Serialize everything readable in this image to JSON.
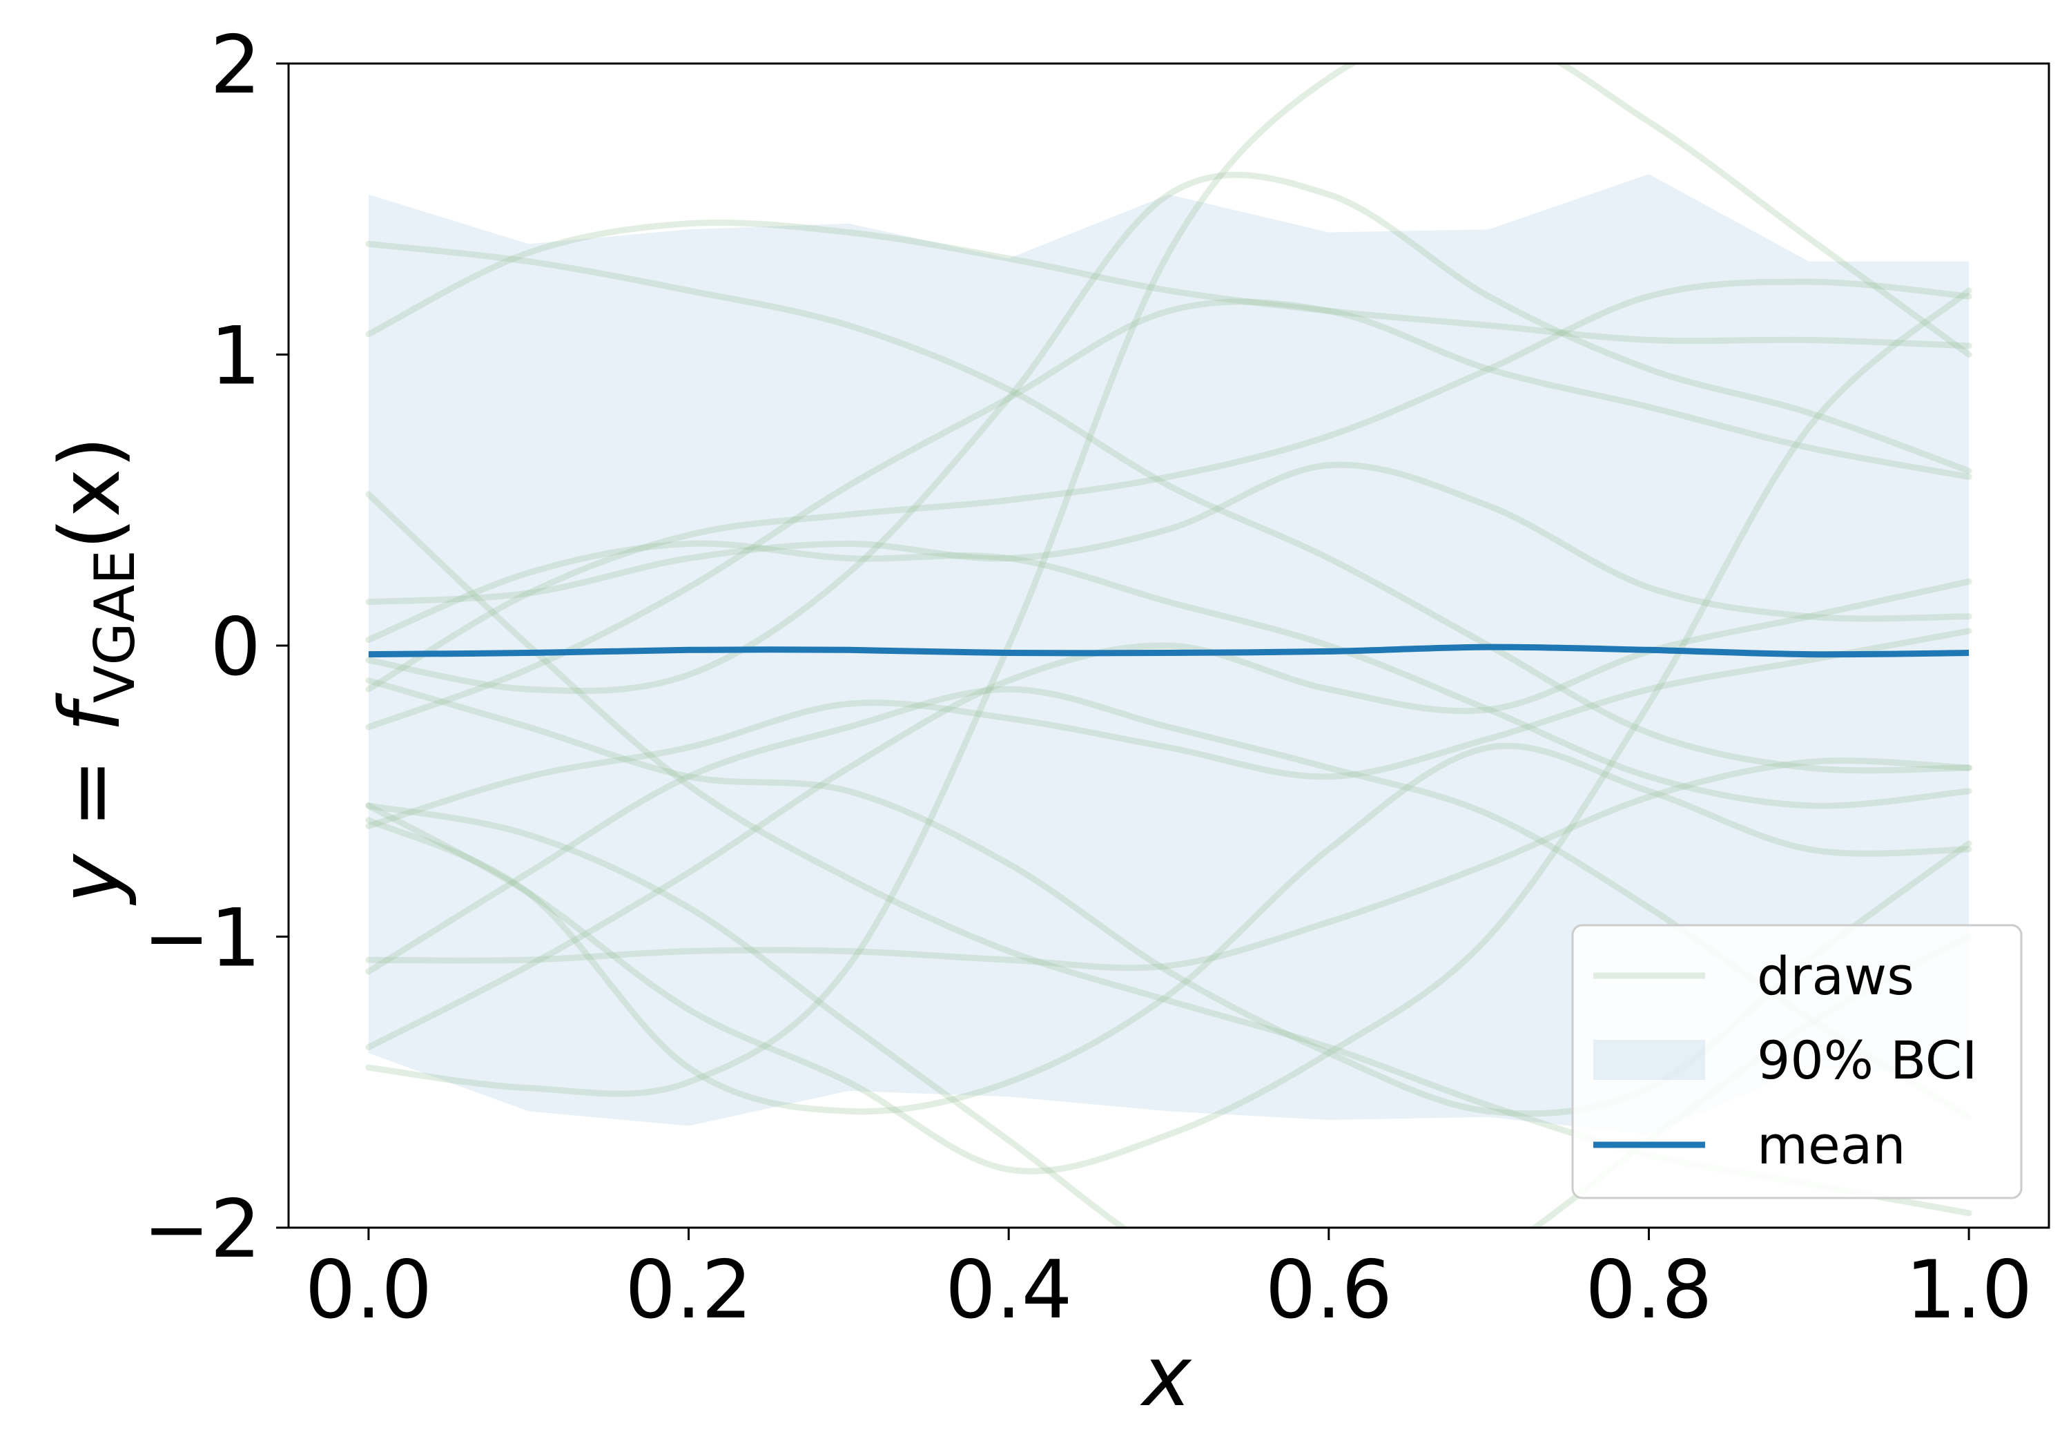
{
  "chart_data": {
    "type": "line",
    "title": "",
    "xlabel": "x",
    "ylabel": {
      "prefix": "y = ",
      "func": "f",
      "subscript": "VGAE",
      "suffix": "(x)"
    },
    "xlim": [
      -0.05,
      1.05
    ],
    "ylim": [
      -2,
      2
    ],
    "xticks": [
      0.0,
      0.2,
      0.4,
      0.6,
      0.8,
      1.0
    ],
    "xtick_labels": [
      "0.0",
      "0.2",
      "0.4",
      "0.6",
      "0.8",
      "1.0"
    ],
    "yticks": [
      -2,
      -1,
      0,
      1,
      2
    ],
    "ytick_labels": [
      "−2",
      "−1",
      "0",
      "1",
      "2"
    ],
    "grid": false,
    "legend_position": "lower-right",
    "legend": [
      {
        "label": "draws",
        "kind": "line",
        "color": "#8fbc8f",
        "opacity": 0.25
      },
      {
        "label": "90% BCI",
        "kind": "fill",
        "color": "#1f77b4",
        "opacity": 0.1
      },
      {
        "label": "mean",
        "kind": "line",
        "color": "#1f77b4",
        "opacity": 1.0
      }
    ],
    "x": [
      0.0,
      0.1,
      0.2,
      0.3,
      0.4,
      0.5,
      0.6,
      0.7,
      0.8,
      0.9,
      1.0
    ],
    "bci": {
      "color": "#1f77b4",
      "opacity": 0.1,
      "upper": [
        1.55,
        1.38,
        1.43,
        1.45,
        1.33,
        1.55,
        1.42,
        1.43,
        1.62,
        1.32,
        1.32
      ],
      "lower": [
        -1.4,
        -1.6,
        -1.65,
        -1.53,
        -1.55,
        -1.6,
        -1.63,
        -1.62,
        -1.68,
        -1.45,
        -1.48
      ]
    },
    "mean": {
      "color": "#1f77b4",
      "values": [
        -0.03,
        -0.025,
        -0.015,
        -0.015,
        -0.025,
        -0.025,
        -0.02,
        -0.005,
        -0.015,
        -0.03,
        -0.025
      ]
    },
    "draws": {
      "color": "#8fbc8f",
      "opacity": 0.25,
      "series": [
        [
          1.38,
          1.32,
          1.22,
          1.1,
          0.88,
          0.55,
          0.3,
          0.0,
          -0.3,
          -0.42,
          -0.42
        ],
        [
          1.07,
          1.35,
          1.45,
          1.42,
          1.33,
          1.22,
          1.15,
          1.1,
          1.05,
          1.05,
          1.03
        ],
        [
          0.52,
          0.0,
          -0.48,
          -0.8,
          -1.05,
          -1.22,
          -1.38,
          -1.58,
          -1.75,
          -1.85,
          -1.95
        ],
        [
          -1.45,
          -1.52,
          -1.5,
          -1.1,
          0.0,
          1.35,
          1.95,
          2.1,
          1.8,
          1.4,
          1.0
        ],
        [
          -0.55,
          -0.65,
          -0.9,
          -1.3,
          -1.7,
          -2.1,
          -2.3,
          -2.1,
          -1.7,
          -1.3,
          -1.0
        ],
        [
          -0.05,
          -0.15,
          -0.1,
          0.25,
          0.85,
          1.55,
          1.55,
          1.2,
          0.95,
          0.8,
          0.6
        ],
        [
          0.15,
          0.18,
          0.3,
          0.35,
          0.3,
          0.4,
          0.62,
          0.48,
          0.2,
          0.1,
          0.1
        ],
        [
          -0.15,
          0.18,
          0.38,
          0.45,
          0.5,
          0.58,
          0.72,
          0.95,
          1.2,
          1.25,
          1.2
        ],
        [
          -0.28,
          -0.08,
          0.2,
          0.55,
          0.85,
          1.15,
          1.15,
          0.95,
          0.82,
          0.68,
          0.58
        ],
        [
          -0.62,
          -0.45,
          -0.35,
          -0.2,
          -0.25,
          -0.35,
          -0.45,
          -0.32,
          -0.15,
          -0.05,
          0.05
        ],
        [
          -1.08,
          -1.08,
          -1.05,
          -1.05,
          -1.08,
          -1.1,
          -0.95,
          -0.75,
          -0.52,
          -0.4,
          -0.42
        ],
        [
          -1.38,
          -1.1,
          -0.78,
          -0.42,
          -0.12,
          0.0,
          -0.15,
          -0.22,
          -0.02,
          0.1,
          0.22
        ],
        [
          -0.55,
          -0.85,
          -1.25,
          -1.5,
          -1.8,
          -1.68,
          -1.4,
          -1.0,
          -0.2,
          0.75,
          1.22
        ],
        [
          -1.12,
          -0.78,
          -0.45,
          -0.28,
          -0.15,
          -0.28,
          -0.42,
          -0.58,
          -0.9,
          -1.28,
          -1.62
        ],
        [
          -0.12,
          -0.28,
          -0.45,
          -0.5,
          -0.75,
          -1.12,
          -1.4,
          -1.6,
          -1.52,
          -1.08,
          -0.68
        ],
        [
          0.02,
          0.25,
          0.35,
          0.3,
          0.3,
          0.15,
          0.0,
          -0.22,
          -0.45,
          -0.55,
          -0.5
        ],
        [
          -0.6,
          -0.85,
          -1.45,
          -1.6,
          -1.5,
          -1.2,
          -0.7,
          -0.35,
          -0.5,
          -0.7,
          -0.7
        ]
      ]
    }
  }
}
